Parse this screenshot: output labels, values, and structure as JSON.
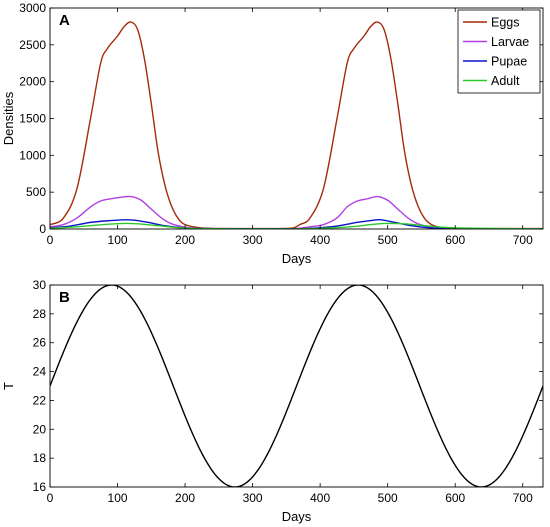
{
  "chart_data": [
    {
      "type": "line",
      "panel_label": "A",
      "xlabel": "Days",
      "ylabel": "Densities",
      "xlim": [
        0,
        730
      ],
      "ylim": [
        0,
        3000
      ],
      "xticks": [
        0,
        100,
        200,
        300,
        400,
        500,
        600,
        700
      ],
      "yticks": [
        0,
        500,
        1000,
        1500,
        2000,
        2500,
        3000
      ],
      "legend_position": "top-right",
      "series": [
        {
          "name": "Eggs",
          "color": "#a52a0a",
          "x": [
            0,
            20,
            40,
            60,
            75,
            85,
            100,
            110,
            120,
            130,
            140,
            150,
            160,
            170,
            180,
            190,
            200,
            220,
            240,
            260,
            280,
            300,
            320,
            340,
            360,
            370,
            385,
            405,
            425,
            440,
            450,
            465,
            475,
            485,
            495,
            505,
            515,
            525,
            535,
            545,
            555,
            565,
            580,
            600,
            620,
            650,
            680,
            730
          ],
          "y": [
            60,
            150,
            550,
            1500,
            2250,
            2450,
            2620,
            2750,
            2810,
            2700,
            2300,
            1700,
            1050,
            600,
            310,
            140,
            60,
            20,
            8,
            5,
            5,
            5,
            5,
            6,
            15,
            60,
            150,
            550,
            1500,
            2250,
            2450,
            2620,
            2750,
            2810,
            2700,
            2300,
            1700,
            1050,
            600,
            310,
            140,
            60,
            20,
            8,
            5,
            5,
            5,
            5
          ]
        },
        {
          "name": "Larvae",
          "color": "#b040e0",
          "x": [
            0,
            20,
            40,
            60,
            75,
            90,
            105,
            120,
            135,
            150,
            165,
            180,
            200,
            220,
            260,
            320,
            360,
            385,
            405,
            425,
            440,
            455,
            470,
            485,
            500,
            515,
            530,
            545,
            565,
            585,
            620,
            680,
            730
          ],
          "y": [
            30,
            60,
            150,
            300,
            380,
            410,
            430,
            440,
            390,
            270,
            150,
            70,
            25,
            8,
            4,
            4,
            4,
            30,
            60,
            150,
            300,
            380,
            410,
            440,
            390,
            270,
            150,
            70,
            25,
            8,
            4,
            4,
            4
          ]
        },
        {
          "name": "Pupae",
          "color": "#0a12c8",
          "x": [
            0,
            30,
            60,
            90,
            110,
            125,
            145,
            170,
            200,
            240,
            320,
            365,
            395,
            425,
            455,
            475,
            490,
            510,
            535,
            565,
            605,
            680,
            730
          ],
          "y": [
            15,
            40,
            90,
            115,
            125,
            120,
            90,
            45,
            15,
            5,
            3,
            3,
            15,
            40,
            90,
            115,
            125,
            90,
            45,
            15,
            5,
            3,
            3
          ]
        },
        {
          "name": "Adult",
          "color": "#2ec82e",
          "x": [
            0,
            40,
            80,
            110,
            130,
            160,
            190,
            230,
            320,
            365,
            405,
            445,
            475,
            495,
            525,
            555,
            595,
            680,
            730
          ],
          "y": [
            10,
            30,
            60,
            75,
            70,
            45,
            18,
            5,
            2,
            2,
            10,
            30,
            60,
            75,
            70,
            45,
            18,
            5,
            2
          ]
        }
      ]
    },
    {
      "type": "line",
      "panel_label": "B",
      "xlabel": "Days",
      "ylabel": "T",
      "xlim": [
        0,
        730
      ],
      "ylim": [
        16,
        30
      ],
      "xticks": [
        0,
        100,
        200,
        300,
        400,
        500,
        600,
        700
      ],
      "yticks": [
        16,
        18,
        20,
        22,
        24,
        26,
        28,
        30
      ],
      "series": [
        {
          "color": "#000000",
          "function": "T(t) = 23 + 7*sin(2*pi*t/365)"
        }
      ]
    }
  ]
}
